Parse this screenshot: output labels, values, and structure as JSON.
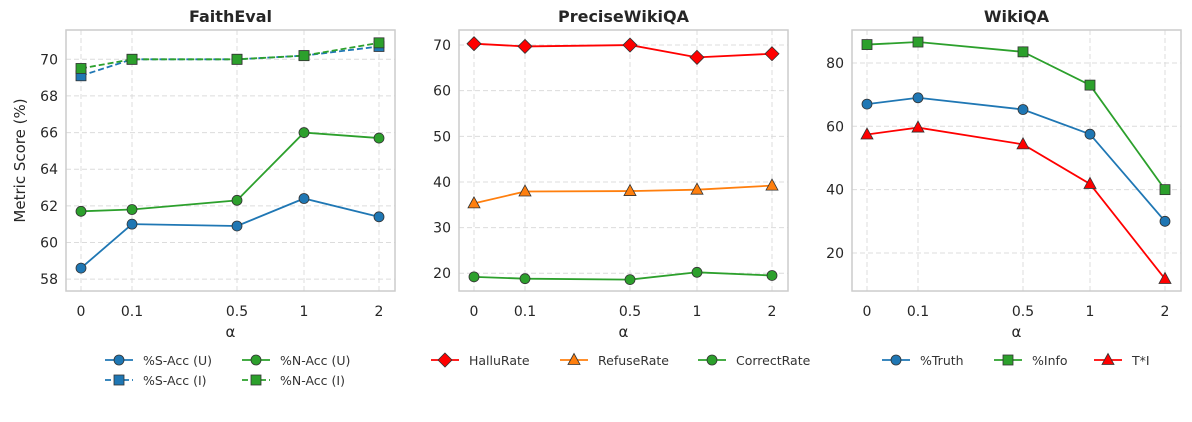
{
  "chart_data": [
    {
      "type": "line",
      "title": "FaithEval",
      "xlabel": "α",
      "ylabel": "Metric Score (%)",
      "x": [
        "0",
        "0.1",
        "0.5",
        "1",
        "2"
      ],
      "ylim": [
        57.35,
        71.6
      ],
      "yticks": [
        58,
        60,
        62,
        64,
        66,
        68,
        70
      ],
      "grid": true,
      "legend_placement": "bottom",
      "series": [
        {
          "name": "%S-Acc (U)",
          "color": "#1f77b4",
          "marker": "circle",
          "dash": false,
          "values": [
            58.6,
            61.0,
            60.9,
            62.4,
            61.4
          ]
        },
        {
          "name": "%N-Acc (U)",
          "color": "#2ca02c",
          "marker": "circle",
          "dash": false,
          "values": [
            61.7,
            61.8,
            62.3,
            66.0,
            65.7
          ]
        },
        {
          "name": "%S-Acc (I)",
          "color": "#1f77b4",
          "marker": "square",
          "dash": true,
          "values": [
            69.1,
            70.0,
            70.0,
            70.2,
            70.7
          ]
        },
        {
          "name": "%N-Acc (I)",
          "color": "#2ca02c",
          "marker": "square",
          "dash": true,
          "values": [
            69.5,
            70.0,
            70.0,
            70.2,
            70.9
          ]
        }
      ],
      "legend_order": [
        0,
        1,
        2,
        3
      ]
    },
    {
      "type": "line",
      "title": "PreciseWikiQA",
      "xlabel": "α",
      "ylabel": "",
      "x": [
        "0",
        "0.1",
        "0.5",
        "1",
        "2"
      ],
      "ylim": [
        16.1,
        73.3
      ],
      "yticks": [
        20,
        30,
        40,
        50,
        60,
        70
      ],
      "grid": true,
      "legend_placement": "bottom",
      "series": [
        {
          "name": "HalluRate",
          "color": "#ff0000",
          "marker": "diamond",
          "dash": false,
          "values": [
            70.3,
            69.7,
            70.0,
            67.3,
            68.1
          ]
        },
        {
          "name": "RefuseRate",
          "color": "#ff7f0e",
          "marker": "triangle",
          "dash": false,
          "values": [
            35.3,
            37.9,
            38.0,
            38.3,
            39.2
          ]
        },
        {
          "name": "CorrectRate",
          "color": "#2ca02c",
          "marker": "circle",
          "dash": false,
          "values": [
            19.2,
            18.8,
            18.6,
            20.2,
            19.5
          ]
        }
      ]
    },
    {
      "type": "line",
      "title": "WikiQA",
      "xlabel": "α",
      "ylabel": "",
      "x": [
        "0",
        "0.1",
        "0.5",
        "1",
        "2"
      ],
      "ylim": [
        8.0,
        90.4
      ],
      "yticks": [
        20,
        40,
        60,
        80
      ],
      "grid": true,
      "legend_placement": "bottom",
      "series": [
        {
          "name": "%Truth",
          "color": "#1f77b4",
          "marker": "circle",
          "dash": false,
          "values": [
            67.0,
            69.0,
            65.3,
            57.5,
            30.0
          ]
        },
        {
          "name": "%Info",
          "color": "#2ca02c",
          "marker": "square",
          "dash": false,
          "values": [
            85.8,
            86.6,
            83.5,
            73.0,
            40.0
          ]
        },
        {
          "name": "T*I",
          "color": "#ff0000",
          "marker": "triangle",
          "dash": false,
          "values": [
            57.4,
            59.6,
            54.3,
            41.8,
            11.8
          ]
        }
      ]
    }
  ]
}
